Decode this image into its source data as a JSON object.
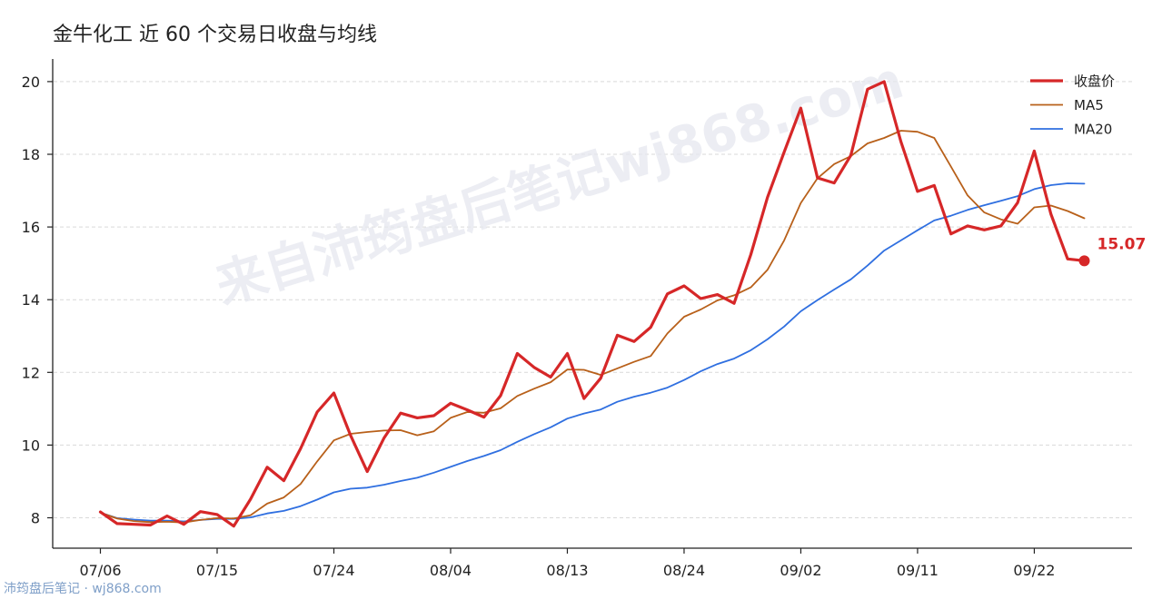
{
  "chart_data": {
    "type": "line",
    "title": "金牛化工 近 60 个交易日收盘与均线",
    "xlabel": "",
    "ylabel": "",
    "ylim": [
      7.3,
      20.6
    ],
    "yticks": [
      8,
      10,
      12,
      14,
      16,
      18,
      20
    ],
    "xtick_labels": [
      "07/06",
      "07/15",
      "07/24",
      "08/04",
      "08/13",
      "08/24",
      "09/02",
      "09/11",
      "09/22"
    ],
    "xtick_index": [
      0,
      7,
      14,
      21,
      28,
      35,
      42,
      49,
      56
    ],
    "grid": "horizontal dashed",
    "legend_position": "top-right",
    "series": [
      {
        "name": "收盘价",
        "color": "#d62728",
        "values": [
          8.16,
          7.84,
          7.82,
          7.8,
          8.05,
          7.82,
          8.17,
          8.09,
          7.77,
          8.51,
          9.39,
          9.02,
          9.9,
          10.91,
          11.43,
          10.27,
          9.27,
          10.19,
          10.88,
          10.75,
          10.81,
          11.15,
          10.97,
          10.77,
          11.36,
          12.52,
          12.14,
          11.87,
          12.52,
          11.28,
          11.84,
          13.02,
          12.85,
          13.24,
          14.16,
          14.38,
          14.03,
          14.14,
          13.9,
          15.24,
          16.81,
          18.06,
          19.27,
          17.35,
          17.21,
          17.97,
          19.79,
          20.0,
          18.35,
          16.98,
          17.14,
          15.81,
          16.03,
          15.92,
          16.03,
          16.67,
          18.09,
          16.35,
          15.12,
          15.07
        ]
      },
      {
        "name": "MA5",
        "color": "#b8601a",
        "values": [
          8.14,
          7.98,
          7.91,
          7.88,
          7.89,
          7.87,
          7.94,
          7.99,
          7.98,
          8.07,
          8.39,
          8.56,
          8.93,
          9.55,
          10.13,
          10.31,
          10.36,
          10.4,
          10.41,
          10.27,
          10.38,
          10.75,
          10.91,
          10.89,
          11.01,
          11.35,
          11.55,
          11.73,
          12.08,
          12.07,
          11.93,
          12.11,
          12.29,
          12.45,
          13.07,
          13.53,
          13.73,
          13.98,
          14.12,
          14.34,
          14.82,
          15.63,
          16.66,
          17.34,
          17.73,
          17.95,
          18.3,
          18.45,
          18.65,
          18.62,
          18.45,
          17.66,
          16.87,
          16.4,
          16.21,
          16.09,
          16.54,
          16.59,
          16.44,
          16.24
        ]
      },
      {
        "name": "MA20",
        "color": "#2f6fe0",
        "values": [
          8.14,
          7.99,
          7.95,
          7.92,
          7.92,
          7.9,
          7.94,
          7.97,
          7.97,
          8.01,
          8.12,
          8.19,
          8.32,
          8.5,
          8.7,
          8.8,
          8.83,
          8.91,
          9.01,
          9.1,
          9.24,
          9.4,
          9.56,
          9.7,
          9.86,
          10.09,
          10.3,
          10.49,
          10.73,
          10.87,
          10.98,
          11.19,
          11.33,
          11.44,
          11.58,
          11.79,
          12.03,
          12.23,
          12.38,
          12.61,
          12.91,
          13.26,
          13.68,
          13.99,
          14.28,
          14.56,
          14.94,
          15.35,
          15.63,
          15.91,
          16.18,
          16.31,
          16.47,
          16.6,
          16.72,
          16.85,
          17.04,
          17.15,
          17.2,
          17.19
        ]
      }
    ],
    "last_value_label": "15.07"
  },
  "watermark": "来自沛筠盘后笔记wj868.com",
  "source_note": "沛筠盘后笔记 · wj868.com"
}
